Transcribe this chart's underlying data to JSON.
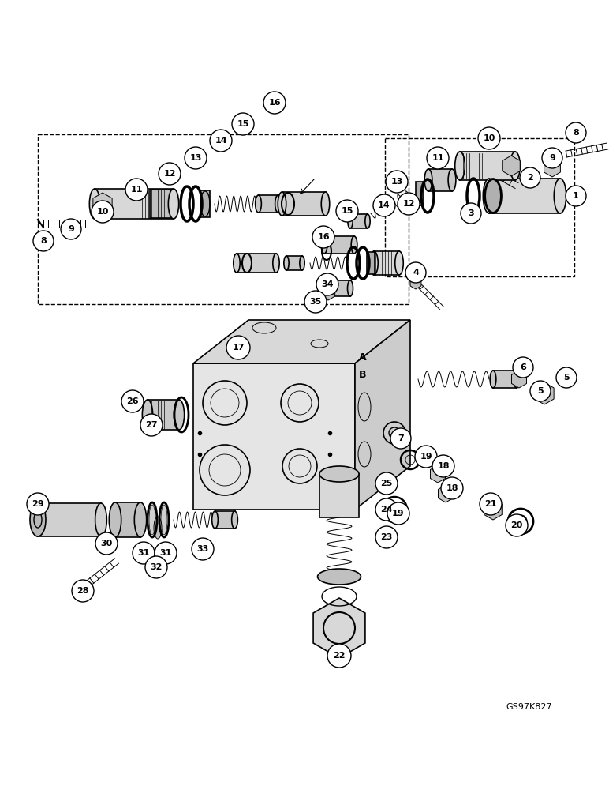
{
  "bg_color": "#ffffff",
  "line_color": "#000000",
  "fig_width": 7.72,
  "fig_height": 10.0,
  "watermark": "GS97K827",
  "dpi": 100
}
